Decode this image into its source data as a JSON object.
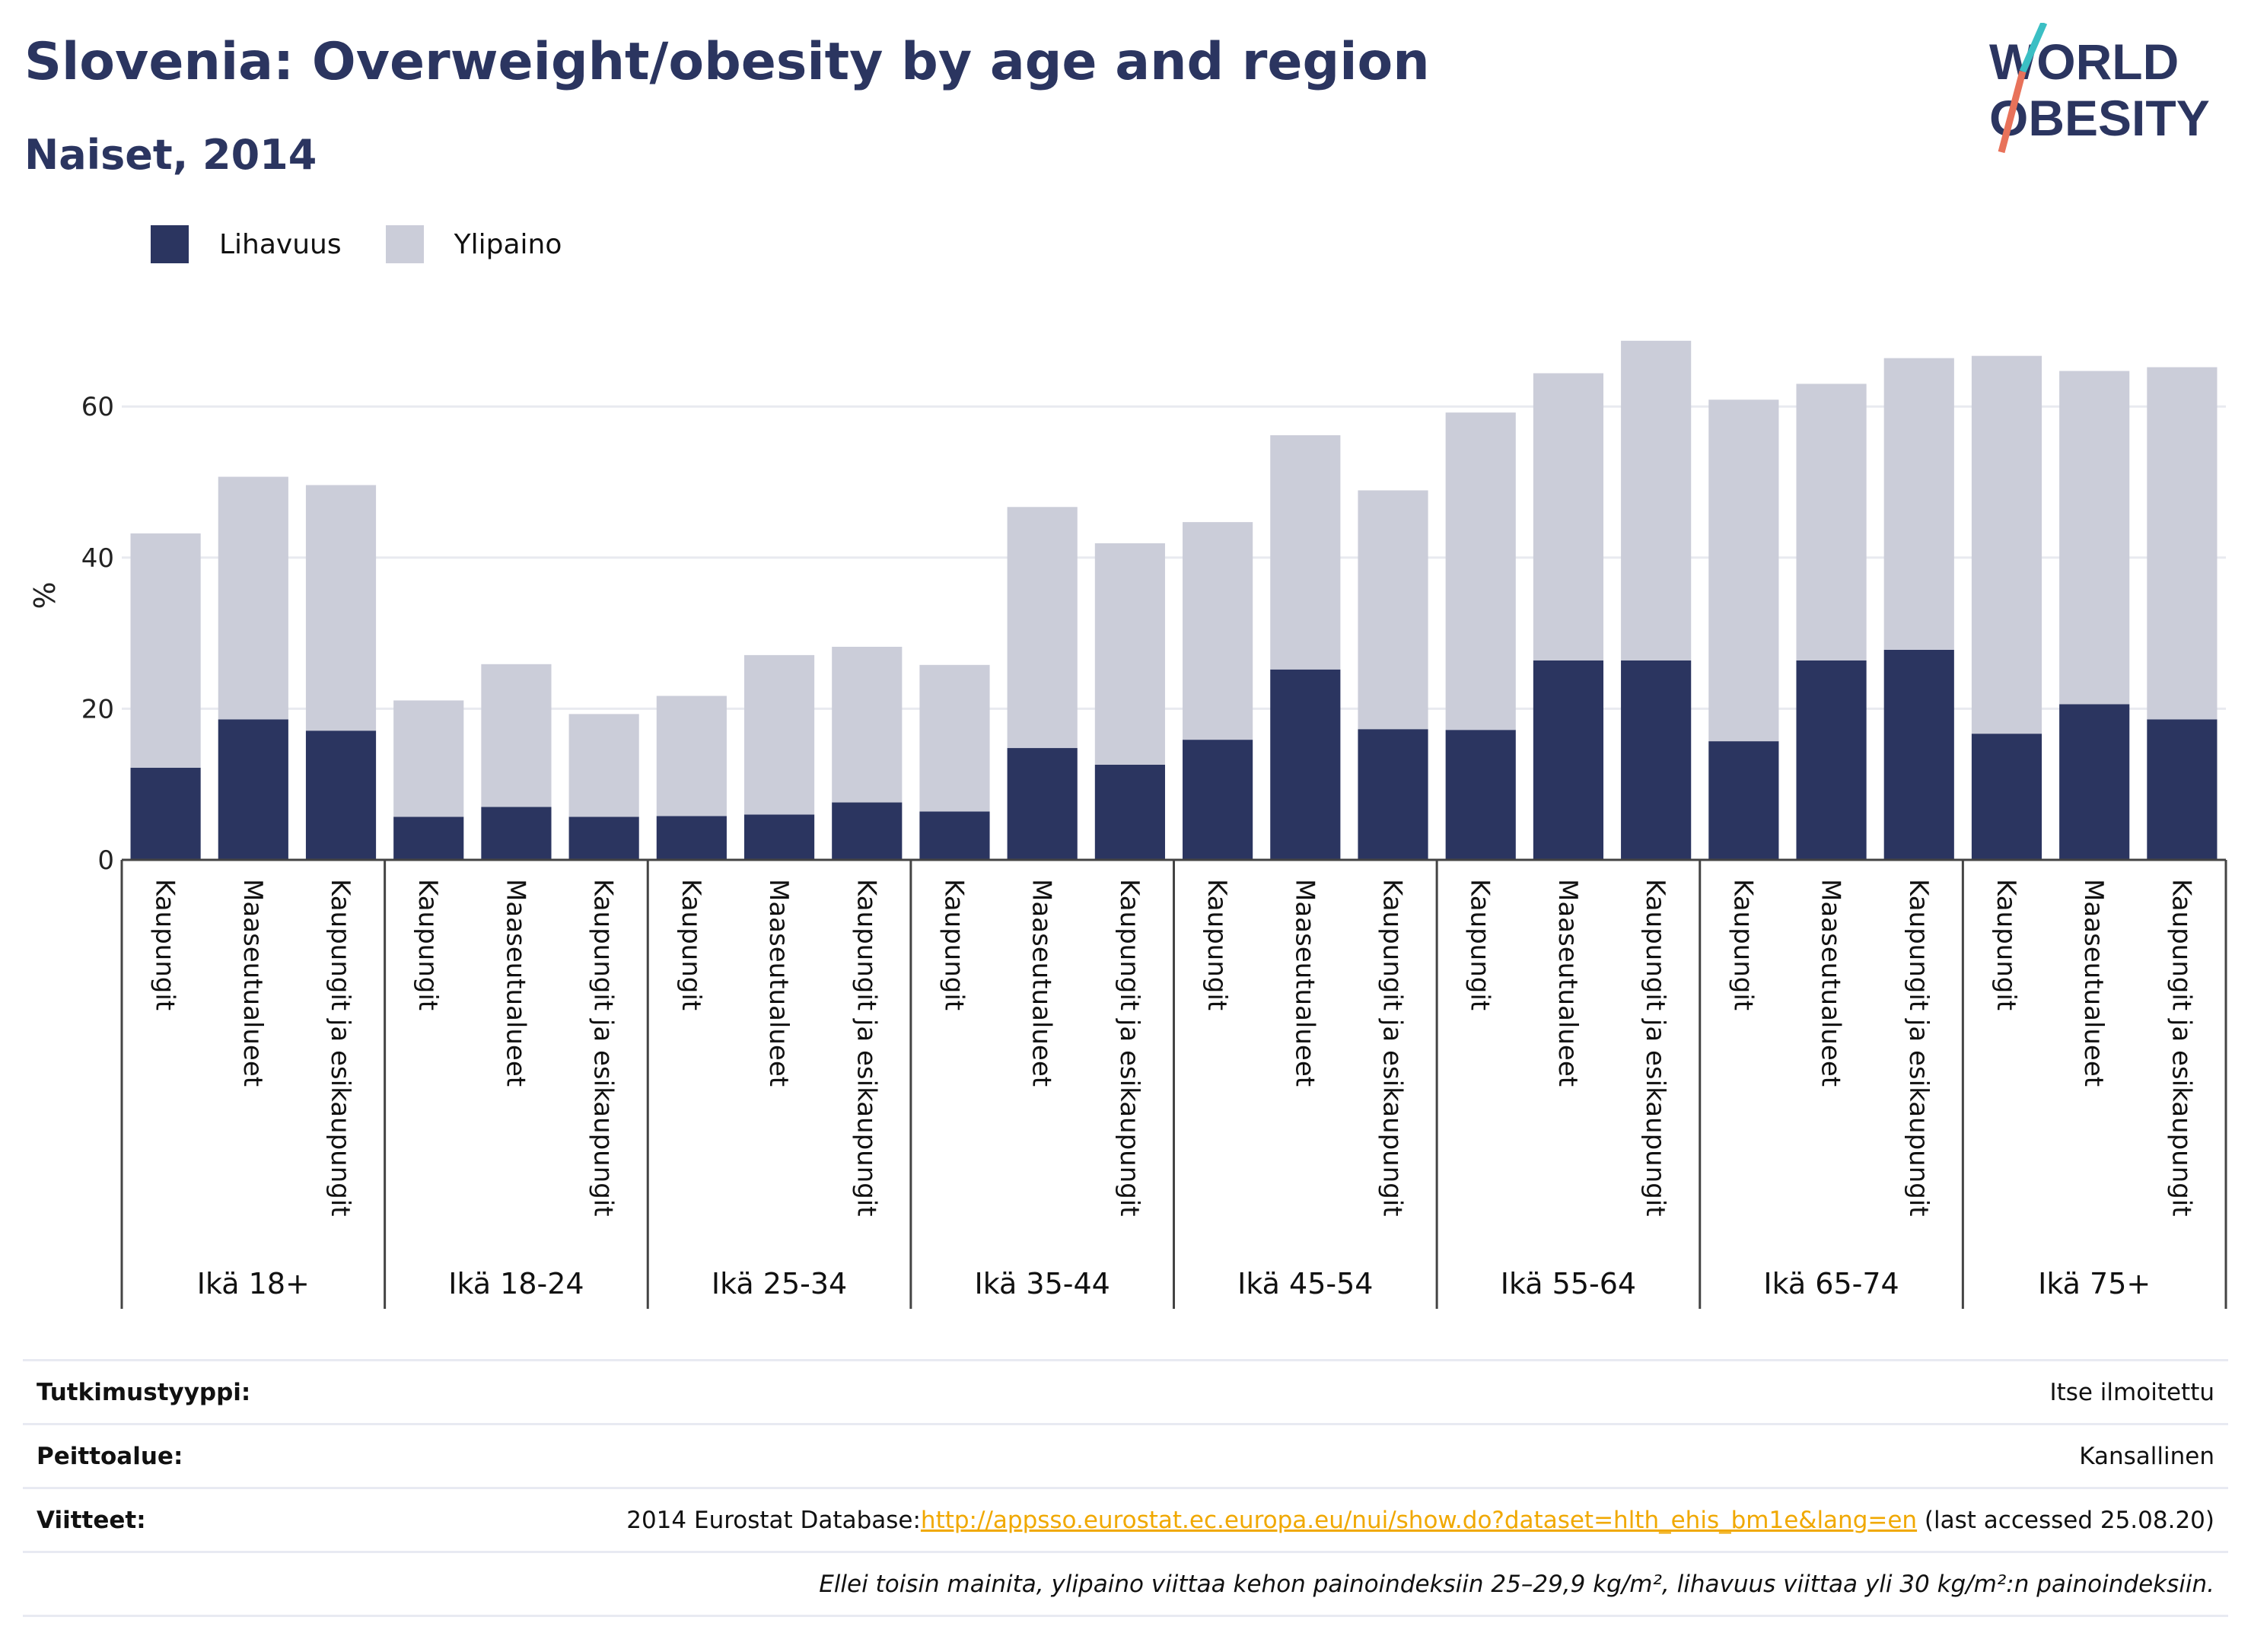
{
  "title": "Slovenia: Overweight/obesity by age and region",
  "subtitle": "Naiset, 2014",
  "logo": {
    "line1": "WORLD",
    "line2": "OBESITY"
  },
  "legend": [
    {
      "label": "Lihavuus",
      "color": "#2b3560"
    },
    {
      "label": "Ylipaino",
      "color": "#cbcdd9"
    }
  ],
  "chart_data": {
    "type": "bar",
    "stacked": true,
    "ylabel": "%",
    "ylim": [
      0,
      70
    ],
    "yticks": [
      0,
      20,
      40,
      60
    ],
    "grid": true,
    "legend_position": "top-left",
    "groups": [
      "Ikä 18+",
      "Ikä 18-24",
      "Ikä 25-34",
      "Ikä 35-44",
      "Ikä 45-54",
      "Ikä 55-64",
      "Ikä 65-74",
      "Ikä 75+"
    ],
    "regions": [
      "Kaupungit",
      "Maaseutualueet",
      "Kaupungit ja esikaupungit"
    ],
    "series": [
      {
        "name": "Lihavuus",
        "color": "#2b3560",
        "values": [
          12.2,
          18.6,
          17.1,
          5.7,
          7.0,
          5.7,
          5.8,
          6.0,
          7.6,
          6.4,
          14.8,
          12.6,
          15.9,
          25.2,
          17.3,
          17.2,
          26.4,
          26.4,
          15.7,
          26.4,
          27.8,
          16.7,
          20.6,
          18.6
        ]
      },
      {
        "name": "Ylipaino",
        "color": "#cbcdd9",
        "values": [
          31.0,
          32.1,
          32.5,
          15.4,
          18.9,
          13.6,
          15.9,
          21.1,
          20.6,
          19.4,
          31.9,
          29.3,
          28.8,
          31.0,
          31.6,
          42.0,
          38.0,
          42.3,
          45.2,
          36.6,
          38.6,
          50.0,
          44.1,
          46.6
        ]
      }
    ]
  },
  "meta": {
    "rows": [
      {
        "key": "Tutkimustyyppi:",
        "value": "Itse ilmoitettu"
      },
      {
        "key": "Peittoalue:",
        "value": "Kansallinen"
      }
    ],
    "ref_key": "Viitteet:",
    "ref_prefix": "2014 Eurostat Database:",
    "ref_link": "http://appsso.eurostat.ec.europa.eu/nui/show.do?dataset=hlth_ehis_bm1e&lang=en",
    "ref_suffix": " (last accessed 25.08.20)",
    "note": "Ellei toisin mainita, ylipaino viittaa kehon painoindeksiin 25–29,9 kg/m², lihavuus viittaa yli 30 kg/m²:n painoindeksiin."
  }
}
